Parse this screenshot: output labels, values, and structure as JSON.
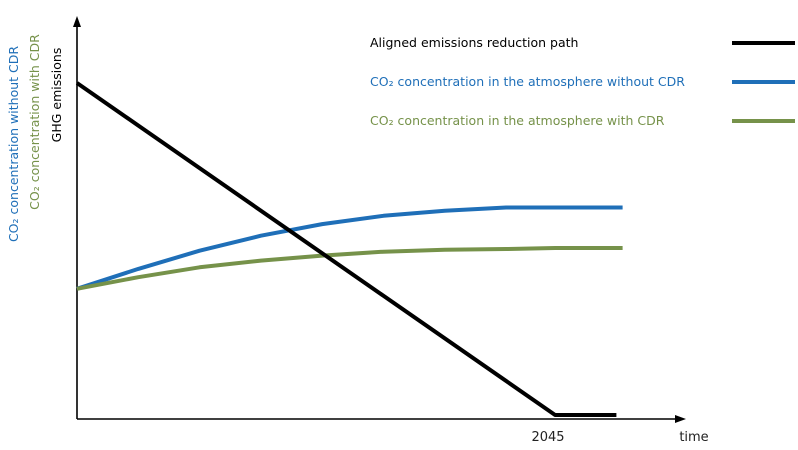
{
  "chart_data": {
    "type": "line",
    "title": "",
    "x_tick_label": "2045",
    "x_axis_label": "time",
    "y_axis_labels": [
      {
        "text": "CO₂ concentration without CDR",
        "color": "#1f6fb8"
      },
      {
        "text": "CO₂ concentration with CDR",
        "color": "#76924a"
      },
      {
        "text": "GHG emissions",
        "color": "#000000"
      }
    ],
    "x_range": [
      0,
      100
    ],
    "y_range": [
      0,
      100
    ],
    "grid": false,
    "legend_placement": "top-right",
    "series": [
      {
        "name": "Aligned emissions reduction path",
        "color": "#000000",
        "points": [
          [
            0,
            100
          ],
          [
            78,
            0
          ],
          [
            88,
            0
          ]
        ]
      },
      {
        "name": "CO₂ concentration in the atmosphere without CDR",
        "color": "#1f6fb8",
        "points": [
          [
            0,
            38
          ],
          [
            10,
            44
          ],
          [
            20,
            49.5
          ],
          [
            30,
            54
          ],
          [
            40,
            57.5
          ],
          [
            50,
            60
          ],
          [
            60,
            61.5
          ],
          [
            70,
            62.5
          ],
          [
            78,
            62.5
          ],
          [
            89,
            62.5
          ]
        ]
      },
      {
        "name": "CO₂ concentration in the atmosphere with CDR",
        "color": "#76924a",
        "points": [
          [
            0,
            38
          ],
          [
            10,
            41.5
          ],
          [
            20,
            44.5
          ],
          [
            30,
            46.5
          ],
          [
            40,
            48
          ],
          [
            50,
            49.2
          ],
          [
            60,
            49.8
          ],
          [
            70,
            50
          ],
          [
            78,
            50.3
          ],
          [
            89,
            50.3
          ]
        ]
      }
    ]
  }
}
